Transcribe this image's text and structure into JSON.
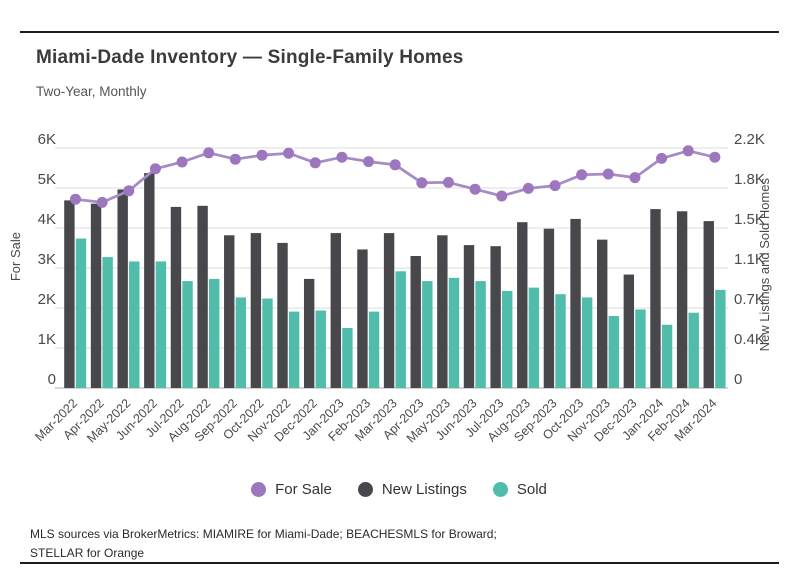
{
  "header": {
    "title": "Miami-Dade Inventory — Single-Family Homes",
    "subtitle": "Two-Year, Monthly"
  },
  "chart_data": {
    "type": "bar",
    "subtype": "grouped bars with overlaid line (dual axis)",
    "categories": [
      "Mar-2022",
      "Apr-2022",
      "May-2022",
      "Jun-2022",
      "Jul-2022",
      "Aug-2022",
      "Sep-2022",
      "Oct-2022",
      "Nov-2022",
      "Dec-2022",
      "Jan-2023",
      "Feb-2023",
      "Mar-2023",
      "Apr-2023",
      "May-2023",
      "Jun-2023",
      "Jul-2023",
      "Aug-2023",
      "Sep-2023",
      "Oct-2023",
      "Nov-2023",
      "Dec-2023",
      "Jan-2024",
      "Feb-2024",
      "Mar-2024"
    ],
    "series": [
      {
        "name": "For Sale",
        "type": "line",
        "axis": "left",
        "marker": "circle",
        "color": "#9c77bd",
        "line_color": "#a58cc6",
        "values_thousands": [
          4.72,
          4.64,
          4.93,
          5.48,
          5.65,
          5.88,
          5.72,
          5.82,
          5.87,
          5.63,
          5.77,
          5.66,
          5.58,
          5.13,
          5.14,
          4.97,
          4.8,
          4.99,
          5.06,
          5.33,
          5.35,
          5.26,
          5.74,
          5.93,
          5.77
        ]
      },
      {
        "name": "New Listings",
        "type": "bar",
        "axis": "right",
        "color": "#48474b",
        "values_thousands": [
          1.72,
          1.69,
          1.82,
          1.97,
          1.66,
          1.67,
          1.4,
          1.42,
          1.33,
          1.0,
          1.42,
          1.27,
          1.42,
          1.21,
          1.4,
          1.31,
          1.3,
          1.52,
          1.46,
          1.55,
          1.36,
          1.04,
          1.64,
          1.62,
          1.53
        ]
      },
      {
        "name": "Sold",
        "type": "bar",
        "axis": "right",
        "color": "#50bdab",
        "values_thousands": [
          1.37,
          1.2,
          1.16,
          1.16,
          0.98,
          1.0,
          0.83,
          0.82,
          0.7,
          0.71,
          0.55,
          0.7,
          1.07,
          0.98,
          1.01,
          0.98,
          0.89,
          0.92,
          0.86,
          0.83,
          0.66,
          0.72,
          0.58,
          0.69,
          0.9
        ]
      }
    ],
    "left_axis": {
      "label": "For Sale",
      "tick_labels": [
        "0",
        "1K",
        "2K",
        "3K",
        "4K",
        "5K",
        "6K"
      ],
      "min": 0,
      "max_thousands": 6
    },
    "right_axis": {
      "label": "New Listings and Sold Homes",
      "tick_labels": [
        "0",
        "0.4K",
        "0.7K",
        "1.1K",
        "1.5K",
        "1.8K",
        "2.2K"
      ],
      "min": 0,
      "max_thousands": 2.2
    },
    "grid": "horizontal gridlines on",
    "legend_position": "bottom",
    "x_tick_rotation_deg": -45
  },
  "legend_note": "legend markers are filled circles matching series colors",
  "footer": {
    "line1": "MLS sources via BrokerMetrics: MIAMIRE for Miami-Dade; BEACHESMLS for Broward;",
    "line2": "STELLAR for Orange"
  },
  "colors": {
    "for_sale_purple": "#9c77bd",
    "new_listings_dark": "#48474b",
    "sold_teal": "#50bdab",
    "gridline": "#dcdcdc",
    "axis_line": "#ababab",
    "text": "#4a4a4a",
    "rule": "#1c1c1c",
    "background": "#ffffff"
  }
}
